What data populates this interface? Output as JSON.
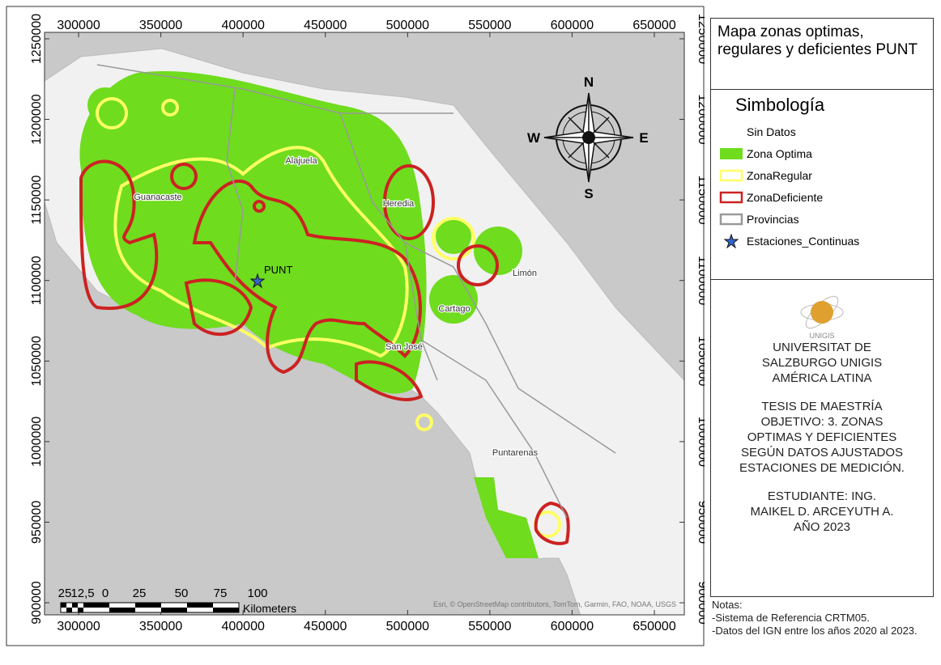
{
  "map": {
    "xlim": [
      279300,
      668200
    ],
    "ylim": [
      892500,
      1254000
    ],
    "xticks": [
      300000,
      350000,
      400000,
      450000,
      500000,
      550000,
      600000,
      650000
    ],
    "yticks": [
      900000,
      950000,
      1000000,
      1050000,
      1100000,
      1150000,
      1200000,
      1250000
    ],
    "places": [
      "Guanacaste",
      "Alajuela",
      "Heredia",
      "Limón",
      "Cartago",
      "San José",
      "Puntarenas"
    ],
    "station": "PUNT",
    "compass": {
      "n": "N",
      "s": "S",
      "e": "E",
      "w": "W"
    },
    "scale_bar": {
      "labels": [
        "25",
        "12,5",
        "0",
        "25",
        "50",
        "75",
        "100"
      ],
      "unit": "Kilometers"
    },
    "attribution": "Esri, © OpenStreetMap contributors, TomTom, Garmin, FAO, NOAA, USGS"
  },
  "legend": {
    "title": "Mapa zonas optimas, regulares y deficientes PUNT",
    "heading": "Simbología",
    "items": [
      {
        "label": "Sin Datos"
      },
      {
        "label": "Zona Optima",
        "swatch": "fill",
        "color": "#6fdc1e"
      },
      {
        "label": "ZonaRegular",
        "swatch": "outline",
        "color": "#ffff66"
      },
      {
        "label": "ZonaDeficiente",
        "swatch": "outline",
        "color": "#cc2222"
      },
      {
        "label": "Provincias",
        "swatch": "outline",
        "color": "#999999"
      },
      {
        "label": "Estaciones_Continuas",
        "swatch": "star",
        "color": "#3366cc"
      }
    ]
  },
  "credits": {
    "logo_text": "UNIGIS",
    "institution": "UNIVERSITAT DE SALZBURGO UNIGIS AMÉRICA LATINA",
    "thesis": "TESIS DE MAESTRÍA OBJETIVO: 3. ZONAS OPTIMAS Y DEFICIENTES SEGÚN DATOS AJUSTADOS ESTACIONES DE MEDICIÓN.",
    "student": "ESTUDIANTE: ING. MAIKEL D. ARCEYUTH A. AÑO 2023"
  },
  "notes": {
    "heading": "Notas:",
    "lines": [
      "-Sistema de Referencia CRTM05.",
      "-Datos del IGN entre los años 2020 al 2023."
    ]
  }
}
